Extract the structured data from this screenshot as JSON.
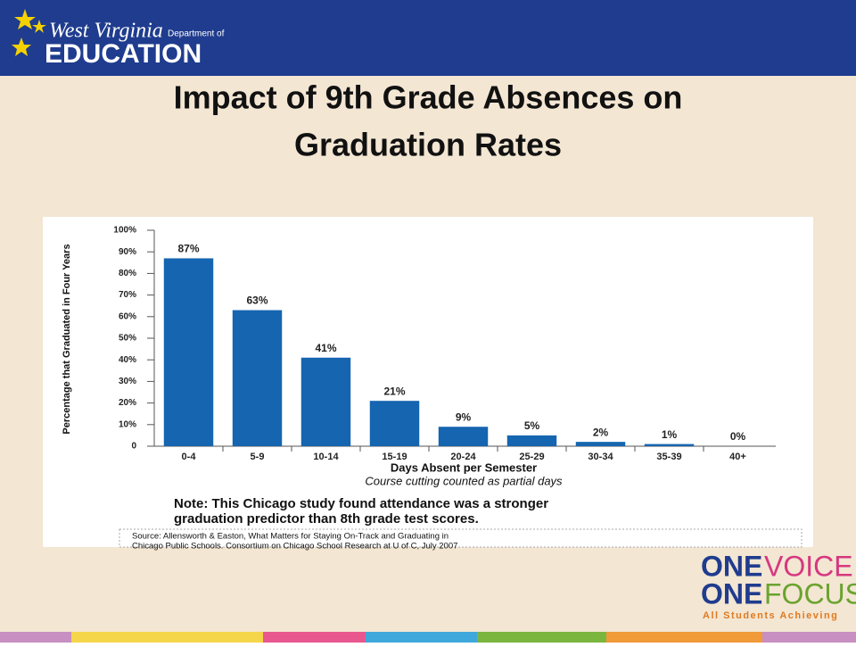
{
  "header": {
    "logo_script": "West Virginia",
    "logo_dept": "Department of",
    "logo_main": "EDUCATION"
  },
  "chart_data": {
    "type": "bar",
    "title": "Impact of 9th Grade Absences on Graduation Rates",
    "categories": [
      "0-4",
      "5-9",
      "10-14",
      "15-19",
      "20-24",
      "25-29",
      "30-34",
      "35-39",
      "40+"
    ],
    "values": [
      87,
      63,
      41,
      21,
      9,
      5,
      2,
      1,
      0
    ],
    "value_labels": [
      "87%",
      "63%",
      "41%",
      "21%",
      "9%",
      "5%",
      "2%",
      "1%",
      "0%"
    ],
    "color": "#1565b0",
    "ylabel": "Percentage that Graduated in Four Years",
    "xlabel": "Days Absent per Semester",
    "xlabel_note": "Course cutting counted as partial days",
    "ylim": [
      0,
      100
    ],
    "yticks": [
      0,
      {
        "value": 10,
        "label": "10%"
      },
      {
        "value": 20,
        "label": "20%"
      },
      {
        "value": 30,
        "label": "30%"
      },
      {
        "value": 40,
        "label": "40%"
      },
      {
        "value": 50,
        "label": "50%"
      },
      {
        "value": 60,
        "label": "60%"
      },
      {
        "value": 70,
        "label": "70%"
      },
      {
        "value": 80,
        "label": "80%"
      },
      {
        "value": 90,
        "label": "90%"
      },
      {
        "value": 100,
        "label": "100%"
      }
    ],
    "note": [
      "Note:  This Chicago study found attendance was a stronger",
      "graduation predictor than 8th grade test scores."
    ],
    "source": [
      "Source: Allensworth & Easton, What Matters for Staying On-Track and Graduating in",
      "Chicago Public Schools.  Consortium on Chicago School Research at U of C, July 2007"
    ]
  },
  "footer": {
    "one1": "ONE",
    "voice": "VOICE",
    "one2": "ONE",
    "focus": "FOCUS",
    "tagline": "All Students Achieving"
  }
}
